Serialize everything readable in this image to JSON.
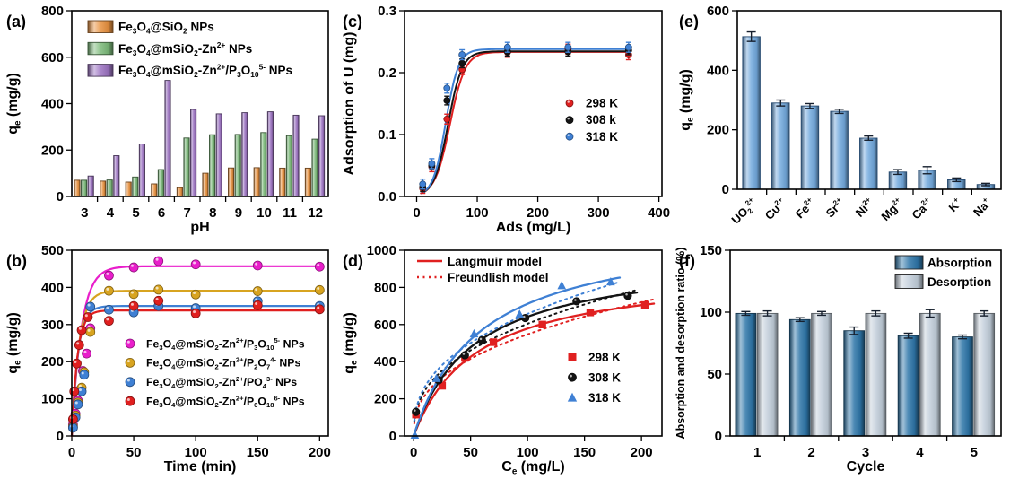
{
  "figure": {
    "description": "Six-panel adsorption study figure (a-f)"
  },
  "chart_data": [
    {
      "id": "a",
      "panel_label": "(a)",
      "type": "bar",
      "xlabel": "pH",
      "ylabel": "q_{e} (mg/g)",
      "categories": [
        "3",
        "4",
        "5",
        "6",
        "7",
        "8",
        "9",
        "10",
        "11",
        "12"
      ],
      "series": [
        {
          "name": "Fe_{3}O_{4}@SiO_{2} NPs",
          "color": "#E8913F",
          "values": [
            70,
            66,
            62,
            54,
            38,
            100,
            123,
            124,
            122,
            122
          ]
        },
        {
          "name": "Fe_{3}O_{4}@mSiO_{2}-Zn^{2+} NPs",
          "color": "#7CBA7A",
          "values": [
            70,
            71,
            84,
            116,
            252,
            266,
            267,
            275,
            262,
            247
          ]
        },
        {
          "name": "Fe_{3}O_{4}@mSiO_{2}-Zn^{2+}/P_{3}O_{10}^{5-} NPs",
          "color": "#9C73C2",
          "values": [
            88,
            176,
            226,
            500,
            375,
            356,
            361,
            365,
            350,
            348
          ]
        }
      ],
      "ylim": [
        0,
        800
      ],
      "yticks": [
        0,
        200,
        400,
        600,
        800
      ],
      "legend_pos": "top-left"
    },
    {
      "id": "b",
      "panel_label": "(b)",
      "type": "kinetics",
      "xlabel": "Time (min)",
      "ylabel": "q_{e} (mg/g)",
      "xlim": [
        0,
        207
      ],
      "xticks": [
        0,
        50,
        100,
        150,
        200
      ],
      "ylim": [
        0,
        500
      ],
      "yticks": [
        0,
        100,
        200,
        300,
        400,
        500
      ],
      "series": [
        {
          "name": "Fe_{3}O_{4}@mSiO_{2}-Zn^{2+}/P_{3}O_{10}^{5-} NPs",
          "color": "#E91ECB",
          "fit": {
            "qmax": 457,
            "k": 0.13
          },
          "points": [
            [
              1,
              30
            ],
            [
              3,
              60
            ],
            [
              5,
              95
            ],
            [
              7,
              125
            ],
            [
              9,
              175
            ],
            [
              12,
              222
            ],
            [
              15,
              290
            ],
            [
              30,
              432
            ],
            [
              50,
              454
            ],
            [
              70,
              471
            ],
            [
              100,
              462
            ],
            [
              150,
              459
            ],
            [
              200,
              456
            ]
          ]
        },
        {
          "name": "Fe_{3}O_{4}@mSiO_{2}-Zn^{2+}/P_{2}O_{7}^{4-}  NPs",
          "color": "#D8A420",
          "fit": {
            "qmax": 391,
            "k": 0.17
          },
          "points": [
            [
              1,
              25
            ],
            [
              3,
              55
            ],
            [
              5,
              90
            ],
            [
              8,
              130
            ],
            [
              10,
              172
            ],
            [
              15,
              280
            ],
            [
              30,
              391
            ],
            [
              50,
              382
            ],
            [
              70,
              394
            ],
            [
              100,
              381
            ],
            [
              150,
              390
            ],
            [
              200,
              393
            ]
          ]
        },
        {
          "name": "Fe_{3}O_{4}@mSiO_{2}-Zn^{2+}/PO_{4}^{3-}  NPs",
          "color": "#3F80D4",
          "fit": {
            "qmax": 350,
            "k": 0.2
          },
          "points": [
            [
              1,
              22
            ],
            [
              3,
              50
            ],
            [
              5,
              85
            ],
            [
              8,
              120
            ],
            [
              10,
              165
            ],
            [
              15,
              348
            ],
            [
              30,
              340
            ],
            [
              50,
              333
            ],
            [
              70,
              350
            ],
            [
              100,
              344
            ],
            [
              150,
              363
            ],
            [
              200,
              350
            ]
          ]
        },
        {
          "name": "Fe_{3}O_{4}@mSiO_{2}-Zn^{2+}/P_{6}O_{18}^{6-} NPs",
          "color": "#E01F1F",
          "fit": {
            "qmax": 338,
            "k": 0.22
          },
          "points": [
            [
              1,
              45
            ],
            [
              2,
              120
            ],
            [
              4,
              195
            ],
            [
              6,
              245
            ],
            [
              8,
              285
            ],
            [
              13,
              320
            ],
            [
              30,
              310
            ],
            [
              50,
              350
            ],
            [
              70,
              364
            ],
            [
              100,
              330
            ],
            [
              150,
              352
            ],
            [
              200,
              341
            ]
          ]
        }
      ],
      "legend_pos": "middle-right"
    },
    {
      "id": "c",
      "panel_label": "(c)",
      "type": "dose",
      "xlabel": "Ads (mg/L)",
      "ylabel": "Adsorption of U (mg)",
      "xlim": [
        -20,
        405
      ],
      "xticks": [
        0,
        100,
        200,
        300,
        400
      ],
      "ylim": [
        0,
        0.3
      ],
      "yticks": [
        0,
        0.1,
        0.2,
        0.3
      ],
      "ytick_labels": [
        "0.0",
        "0.1",
        "0.2",
        "0.3"
      ],
      "series": [
        {
          "name": "298 K",
          "color": "#E02020",
          "err": 0.008,
          "fit": {
            "L": 0.2335,
            "x0": 55,
            "s": 12.5
          },
          "points": [
            [
              10,
              0.013
            ],
            [
              25,
              0.048
            ],
            [
              50,
              0.125
            ],
            [
              75,
              0.205
            ],
            [
              150,
              0.233
            ],
            [
              250,
              0.238
            ],
            [
              350,
              0.229
            ]
          ]
        },
        {
          "name": "308 k",
          "color": "#141414",
          "err": 0.007,
          "fit": {
            "L": 0.2345,
            "x0": 52,
            "s": 11.5
          },
          "points": [
            [
              10,
              0.015
            ],
            [
              25,
              0.05
            ],
            [
              50,
              0.155
            ],
            [
              75,
              0.215
            ],
            [
              150,
              0.234
            ],
            [
              250,
              0.234
            ],
            [
              350,
              0.236
            ]
          ]
        },
        {
          "name": "318 K",
          "color": "#3F80D4",
          "err": 0.008,
          "fit": {
            "L": 0.238,
            "x0": 48,
            "s": 10.5
          },
          "points": [
            [
              10,
              0.02
            ],
            [
              25,
              0.053
            ],
            [
              50,
              0.175
            ],
            [
              75,
              0.229
            ],
            [
              150,
              0.241
            ],
            [
              250,
              0.241
            ],
            [
              350,
              0.241
            ]
          ]
        }
      ],
      "legend_pos": "middle-right"
    },
    {
      "id": "d",
      "panel_label": "(d)",
      "type": "isotherm",
      "xlabel": "C_{e} (mg/L)",
      "ylabel": "q_{e} (mg/g)",
      "xlim": [
        -8,
        218
      ],
      "xticks": [
        0,
        50,
        100,
        150,
        200
      ],
      "ylim": [
        0,
        1000
      ],
      "yticks": [
        0,
        200,
        400,
        600,
        800,
        1000
      ],
      "model_legend": [
        {
          "label": "Langmuir model",
          "style": "solid"
        },
        {
          "label": "Freundlish model",
          "style": "dotted"
        }
      ],
      "series": [
        {
          "name": "298 K",
          "color": "#E02020",
          "marker": "square",
          "langmuir": {
            "qm": 900,
            "k": 0.018
          },
          "freundlich": {
            "kf": 88,
            "n": 2.52
          },
          "points": [
            [
              2,
              115
            ],
            [
              25,
              270
            ],
            [
              45,
              420
            ],
            [
              70,
              505
            ],
            [
              113,
              600
            ],
            [
              155,
              665
            ],
            [
              203,
              705
            ]
          ]
        },
        {
          "name": "308 K",
          "color": "#141414",
          "marker": "circle",
          "langmuir": {
            "qm": 980,
            "k": 0.019
          },
          "freundlich": {
            "kf": 100,
            "n": 2.56
          },
          "points": [
            [
              2,
              130
            ],
            [
              22,
              300
            ],
            [
              45,
              435
            ],
            [
              60,
              515
            ],
            [
              98,
              635
            ],
            [
              143,
              725
            ],
            [
              188,
              755
            ]
          ]
        },
        {
          "name": "318 K",
          "color": "#3F80D4",
          "marker": "triangle",
          "langmuir": {
            "qm": 1130,
            "k": 0.017
          },
          "freundlich": {
            "kf": 108,
            "n": 2.55
          },
          "points": [
            [
              1,
              5
            ],
            [
              20,
              310
            ],
            [
              53,
              550
            ],
            [
              93,
              655
            ],
            [
              130,
              810
            ],
            [
              173,
              830
            ]
          ]
        }
      ],
      "legend_pos": "middle-right"
    },
    {
      "id": "e",
      "panel_label": "(e)",
      "type": "bar-error",
      "xlabel": "",
      "ylabel": "q_{e} (mg/g)",
      "categories": [
        "UO_{2}^{2+}",
        "Cu^{2+}",
        "Fe^{2+}",
        "Sr^{2+}",
        "Ni^{2+}",
        "Mg^{2+}",
        "Ca^{2+}",
        "K^{+}",
        "Na^{+}"
      ],
      "values": [
        513,
        290,
        280,
        262,
        172,
        58,
        64,
        32,
        16
      ],
      "errors": [
        16,
        10,
        8,
        7,
        7,
        8,
        12,
        6,
        4
      ],
      "bar_color": "#72A9DD",
      "bar_stroke": "#24486F",
      "rotate_xlabels": true,
      "ylim": [
        0,
        600
      ],
      "yticks": [
        0,
        200,
        400,
        600
      ]
    },
    {
      "id": "f",
      "panel_label": "(f)",
      "type": "bar",
      "xlabel": "Cycle",
      "ylabel": "Absorption and desorption ratio (%)",
      "categories": [
        "1",
        "2",
        "3",
        "4",
        "5"
      ],
      "series": [
        {
          "name": "Absorption",
          "color": "#2E75A8",
          "values": [
            99,
            94,
            85,
            81,
            80
          ],
          "errors": [
            1.5,
            1.5,
            3,
            2,
            1.5
          ]
        },
        {
          "name": "Desorption",
          "color": "#C2CEDA",
          "values": [
            99,
            99,
            99,
            99,
            99
          ],
          "errors": [
            2,
            1.5,
            2,
            3,
            2
          ]
        }
      ],
      "ylim": [
        0,
        150
      ],
      "yticks": [
        0,
        50,
        100,
        150
      ],
      "legend_pos": "top-right"
    }
  ]
}
